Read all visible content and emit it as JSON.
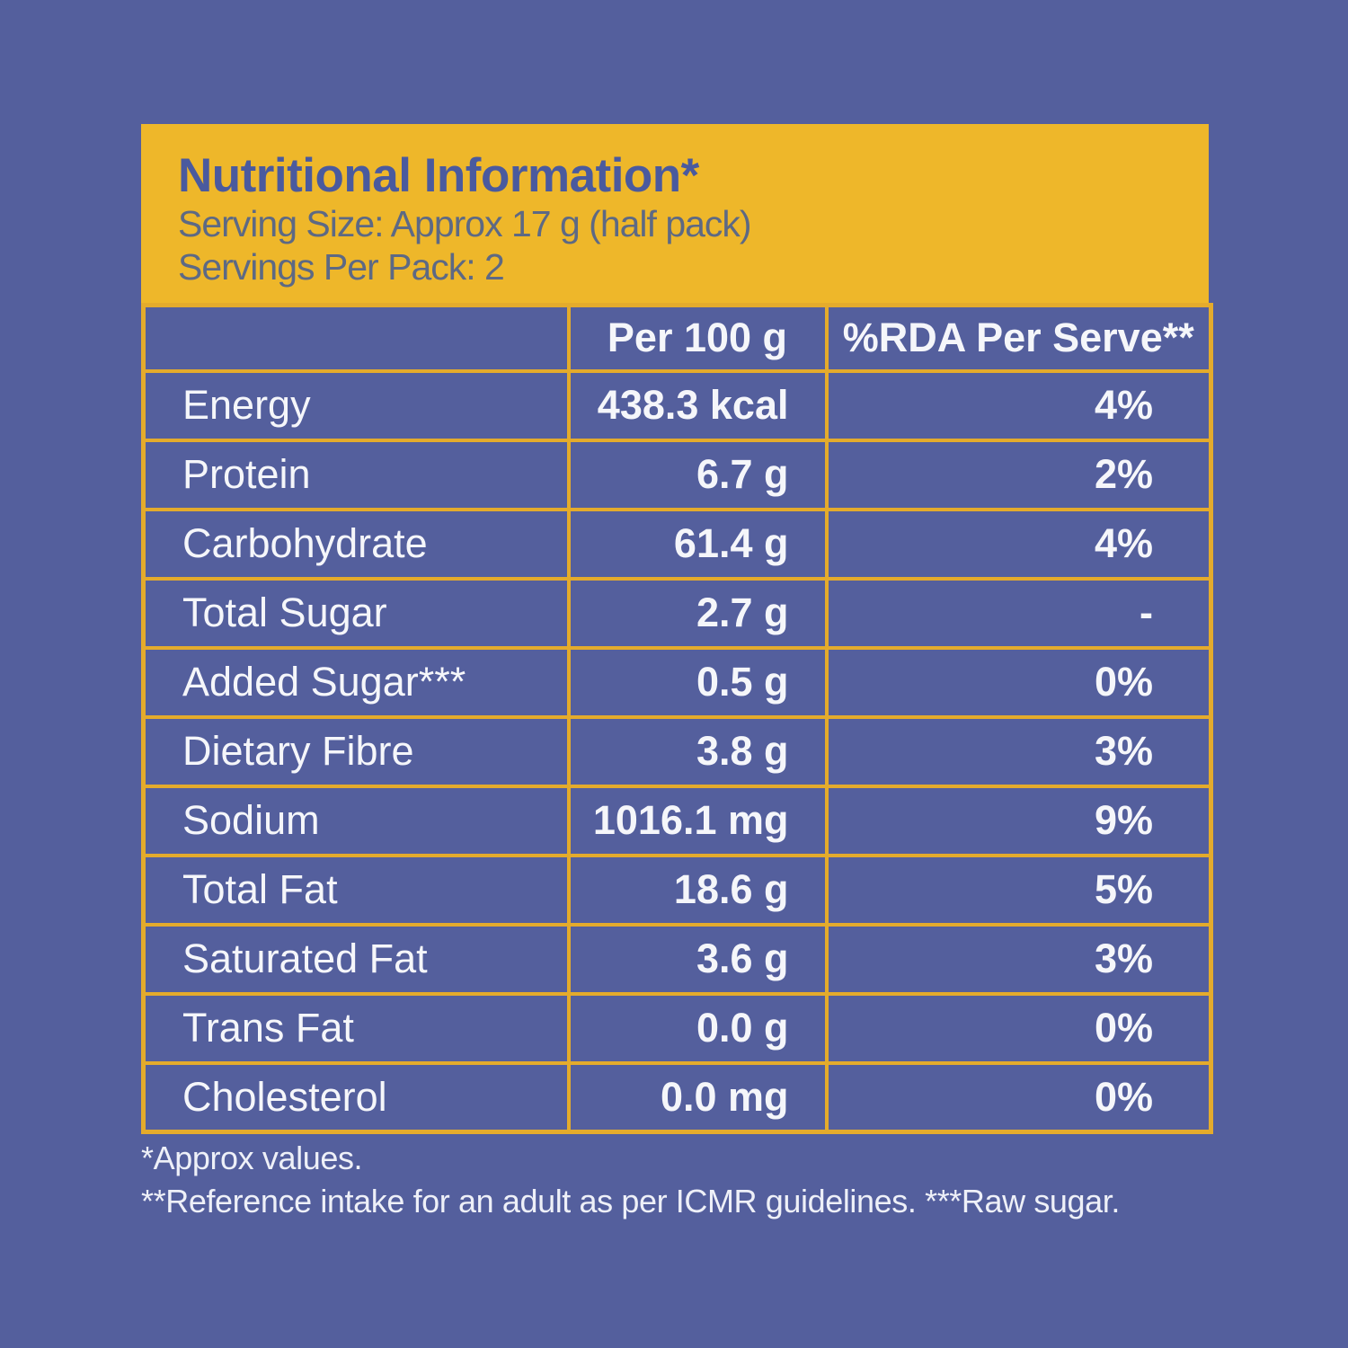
{
  "header": {
    "title": "Nutritional Information*",
    "serving_size": "Serving Size: Approx 17 g (half pack)",
    "servings_per_pack": "Servings Per Pack: 2"
  },
  "table": {
    "columns": [
      "",
      "Per 100 g",
      "%RDA Per Serve**"
    ],
    "rows": [
      {
        "label": "Energy",
        "per100": "438.3 kcal",
        "rda": "4%"
      },
      {
        "label": "Protein",
        "per100": "6.7 g",
        "rda": "2%"
      },
      {
        "label": "Carbohydrate",
        "per100": "61.4 g",
        "rda": "4%"
      },
      {
        "label": "Total Sugar",
        "per100": "2.7 g",
        "rda": "-"
      },
      {
        "label": "Added Sugar***",
        "per100": "0.5 g",
        "rda": "0%"
      },
      {
        "label": "Dietary Fibre",
        "per100": "3.8 g",
        "rda": "3%"
      },
      {
        "label": "Sodium",
        "per100": "1016.1 mg",
        "rda": "9%"
      },
      {
        "label": "Total Fat",
        "per100": "18.6 g",
        "rda": "5%"
      },
      {
        "label": "Saturated Fat",
        "per100": "3.6 g",
        "rda": "3%"
      },
      {
        "label": "Trans Fat",
        "per100": "0.0 g",
        "rda": "0%"
      },
      {
        "label": "Cholesterol",
        "per100": "0.0 mg",
        "rda": "0%"
      }
    ]
  },
  "footnotes": [
    "*Approx values.",
    "**Reference intake for an adult as per ICMR guidelines. ***Raw sugar."
  ],
  "colors": {
    "background": "#545f9d",
    "panel_yellow": "#eeb72a",
    "border_yellow": "#e4ab2c",
    "title_blue": "#4a5a9e",
    "subtitle_gray_blue": "#5d6984",
    "table_text": "#f5f6fa"
  }
}
